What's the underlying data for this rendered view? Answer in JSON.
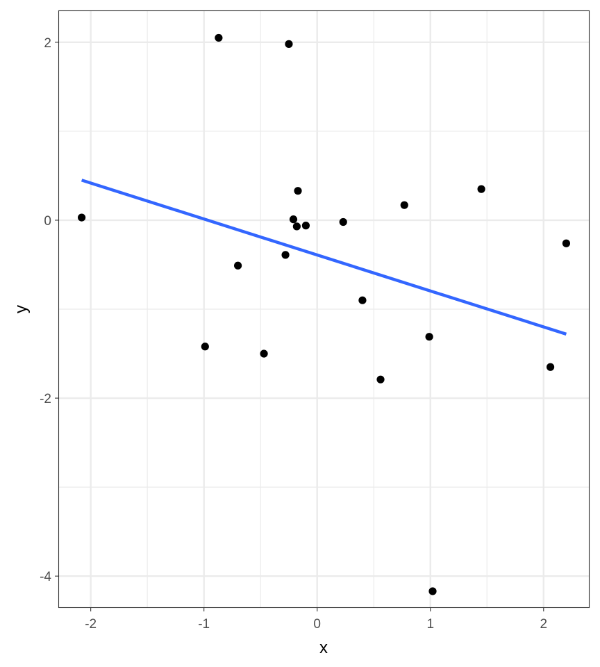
{
  "chart_data": {
    "type": "scatter",
    "title": "",
    "xlabel": "x",
    "ylabel": "y",
    "xlim": [
      -2.28,
      2.4
    ],
    "ylim": [
      -4.35,
      2.35
    ],
    "x_ticks": [
      -2,
      -1,
      0,
      1,
      2
    ],
    "x_tick_labels": [
      "-2",
      "-1",
      "0",
      "1",
      "2"
    ],
    "y_ticks": [
      -4,
      -2,
      0,
      2
    ],
    "y_tick_labels": [
      "-4",
      "-2",
      "0",
      "2"
    ],
    "x_minor_gridlines": [
      -1.5,
      -0.5,
      0.5,
      1.5
    ],
    "y_minor_gridlines": [
      -3,
      -1,
      1
    ],
    "grid": true,
    "theme": "bw",
    "series": [
      {
        "kind": "points",
        "color": "#000000",
        "points": [
          {
            "x": -2.08,
            "y": 0.03
          },
          {
            "x": -0.87,
            "y": 2.05
          },
          {
            "x": -0.25,
            "y": 1.98
          },
          {
            "x": -0.17,
            "y": 0.33
          },
          {
            "x": -0.21,
            "y": 0.01
          },
          {
            "x": -0.18,
            "y": -0.07
          },
          {
            "x": -0.1,
            "y": -0.06
          },
          {
            "x": -0.28,
            "y": -0.39
          },
          {
            "x": -0.7,
            "y": -0.51
          },
          {
            "x": -0.99,
            "y": -1.42
          },
          {
            "x": -0.47,
            "y": -1.5
          },
          {
            "x": 0.23,
            "y": -0.02
          },
          {
            "x": 0.4,
            "y": -0.9
          },
          {
            "x": 0.56,
            "y": -1.79
          },
          {
            "x": 0.77,
            "y": 0.17
          },
          {
            "x": 0.99,
            "y": -1.31
          },
          {
            "x": 1.02,
            "y": -4.17
          },
          {
            "x": 1.45,
            "y": 0.35
          },
          {
            "x": 2.06,
            "y": -1.65
          },
          {
            "x": 2.2,
            "y": -0.26
          }
        ]
      },
      {
        "kind": "fit-line",
        "color": "#3366ff",
        "x": [
          -2.08,
          2.2
        ],
        "y": [
          0.45,
          -1.28
        ]
      }
    ]
  }
}
